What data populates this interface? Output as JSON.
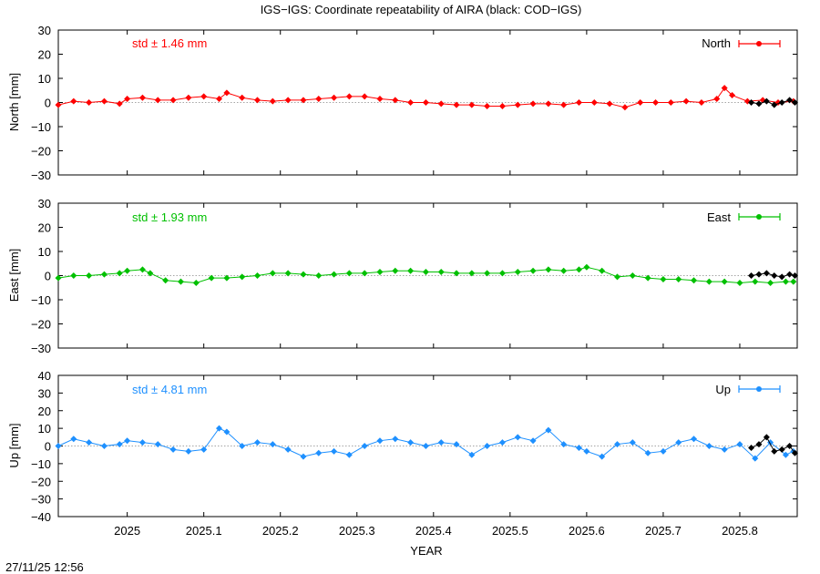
{
  "title": "IGS−IGS: Coordinate repeatability of AIRA (black: COD−IGS)",
  "timestamp": "27/11/25 12:56",
  "xlabel": "YEAR",
  "x_ticks": [
    "2025",
    "2025.1",
    "2025.2",
    "2025.3",
    "2025.4",
    "2025.5",
    "2025.6",
    "2025.7",
    "2025.8"
  ],
  "xlim": [
    2024.91,
    2025.875
  ],
  "panels": [
    {
      "key": "north",
      "ylabel": "North [mm]",
      "legend": "North",
      "std": "std ± 1.46 mm",
      "color": "#ff0000",
      "ylim": [
        -30,
        30
      ],
      "y_ticks": [
        "30",
        "20",
        "10",
        "0",
        "−10",
        "−20",
        "−30"
      ]
    },
    {
      "key": "east",
      "ylabel": "East [mm]",
      "legend": "East",
      "std": "std ± 1.93 mm",
      "color": "#00c000",
      "ylim": [
        -30,
        30
      ],
      "y_ticks": [
        "30",
        "20",
        "10",
        "0",
        "−10",
        "−20",
        "−30"
      ]
    },
    {
      "key": "up",
      "ylabel": "Up [mm]",
      "legend": "Up",
      "std": "std ± 4.81 mm",
      "color": "#1e90ff",
      "ylim": [
        -40,
        40
      ],
      "y_ticks": [
        "40",
        "30",
        "20",
        "10",
        "0",
        "−10",
        "−20",
        "−30",
        "−40"
      ]
    }
  ],
  "chart_data": {
    "type": "line",
    "title": "IGS−IGS: Coordinate repeatability of AIRA (black: COD−IGS)",
    "xlabel": "YEAR",
    "xlim": [
      2024.91,
      2025.875
    ],
    "grid": false,
    "legend_placement": "top-right",
    "marker": "diamond",
    "series": [
      {
        "name": "North",
        "color": "#ff0000",
        "ylim": [
          -30,
          30
        ],
        "x": [
          2024.91,
          2024.93,
          2024.95,
          2024.97,
          2024.99,
          2025.0,
          2025.02,
          2025.04,
          2025.06,
          2025.08,
          2025.1,
          2025.12,
          2025.13,
          2025.15,
          2025.17,
          2025.19,
          2025.21,
          2025.23,
          2025.25,
          2025.27,
          2025.29,
          2025.31,
          2025.33,
          2025.35,
          2025.37,
          2025.39,
          2025.41,
          2025.43,
          2025.45,
          2025.47,
          2025.49,
          2025.51,
          2025.53,
          2025.55,
          2025.57,
          2025.59,
          2025.61,
          2025.63,
          2025.65,
          2025.67,
          2025.69,
          2025.71,
          2025.73,
          2025.75,
          2025.77,
          2025.78,
          2025.79,
          2025.81,
          2025.83,
          2025.85,
          2025.87
        ],
        "y": [
          -1,
          0.5,
          0,
          0.5,
          -0.5,
          1.5,
          2,
          1,
          1,
          2,
          2.5,
          1.5,
          4,
          2,
          1,
          0.5,
          1,
          1,
          1.5,
          2,
          2.5,
          2.5,
          1.5,
          1,
          0,
          0,
          -0.5,
          -1,
          -1,
          -1.5,
          -1.5,
          -1,
          -0.5,
          -0.5,
          -1,
          0,
          0,
          -0.5,
          -2,
          0,
          0,
          0,
          0.5,
          0,
          1.5,
          6,
          3,
          0.5,
          1,
          0,
          0.5
        ]
      },
      {
        "name": "East",
        "color": "#00c000",
        "ylim": [
          -30,
          30
        ],
        "x": [
          2024.91,
          2024.93,
          2024.95,
          2024.97,
          2024.99,
          2025.0,
          2025.02,
          2025.03,
          2025.05,
          2025.07,
          2025.09,
          2025.11,
          2025.13,
          2025.15,
          2025.17,
          2025.19,
          2025.21,
          2025.23,
          2025.25,
          2025.27,
          2025.29,
          2025.31,
          2025.33,
          2025.35,
          2025.37,
          2025.39,
          2025.41,
          2025.43,
          2025.45,
          2025.47,
          2025.49,
          2025.51,
          2025.53,
          2025.55,
          2025.57,
          2025.59,
          2025.6,
          2025.62,
          2025.64,
          2025.66,
          2025.68,
          2025.7,
          2025.72,
          2025.74,
          2025.76,
          2025.78,
          2025.8,
          2025.82,
          2025.84,
          2025.86,
          2025.87
        ],
        "y": [
          -1,
          0,
          0,
          0.5,
          1,
          2,
          2.5,
          1,
          -2,
          -2.5,
          -3,
          -1,
          -1,
          -0.5,
          0,
          1,
          1,
          0.5,
          0,
          0.5,
          1,
          1,
          1.5,
          2,
          2,
          1.5,
          1.5,
          1,
          1,
          1,
          1,
          1.5,
          2,
          2.5,
          2,
          2.5,
          3.5,
          2,
          -0.5,
          0,
          -1,
          -1.5,
          -1.5,
          -2,
          -2.5,
          -2.5,
          -3,
          -2.5,
          -3,
          -2.5,
          -2.5
        ]
      },
      {
        "name": "Up",
        "color": "#1e90ff",
        "ylim": [
          -40,
          40
        ],
        "x": [
          2024.91,
          2024.93,
          2024.95,
          2024.97,
          2024.99,
          2025.0,
          2025.02,
          2025.04,
          2025.06,
          2025.08,
          2025.1,
          2025.12,
          2025.13,
          2025.15,
          2025.17,
          2025.19,
          2025.21,
          2025.23,
          2025.25,
          2025.27,
          2025.29,
          2025.31,
          2025.33,
          2025.35,
          2025.37,
          2025.39,
          2025.41,
          2025.43,
          2025.45,
          2025.47,
          2025.49,
          2025.51,
          2025.53,
          2025.55,
          2025.57,
          2025.59,
          2025.6,
          2025.62,
          2025.64,
          2025.66,
          2025.68,
          2025.7,
          2025.72,
          2025.74,
          2025.76,
          2025.78,
          2025.8,
          2025.82,
          2025.84,
          2025.86,
          2025.87
        ],
        "y": [
          0,
          4,
          2,
          0,
          1,
          3,
          2,
          1,
          -2,
          -3,
          -2,
          10,
          8,
          0,
          2,
          1,
          -2,
          -6,
          -4,
          -3,
          -5,
          0,
          3,
          4,
          2,
          0,
          2,
          1,
          -5,
          0,
          2,
          5,
          3,
          9,
          1,
          -1,
          -3,
          -6,
          1,
          2,
          -4,
          -3,
          2,
          4,
          0,
          -2,
          1,
          -7,
          2,
          -5,
          -3
        ]
      },
      {
        "name": "COD−IGS North",
        "color": "#000000",
        "ylim": [
          -30,
          30
        ],
        "x": [
          2025.815,
          2025.825,
          2025.835,
          2025.845,
          2025.855,
          2025.865,
          2025.872
        ],
        "y": [
          0,
          -0.5,
          0.5,
          -1,
          0,
          1,
          0
        ]
      },
      {
        "name": "COD−IGS East",
        "color": "#000000",
        "ylim": [
          -30,
          30
        ],
        "x": [
          2025.815,
          2025.825,
          2025.835,
          2025.845,
          2025.855,
          2025.865,
          2025.872
        ],
        "y": [
          0,
          0.5,
          1,
          0,
          -0.5,
          0.5,
          0
        ]
      },
      {
        "name": "COD−IGS Up",
        "color": "#000000",
        "ylim": [
          -40,
          40
        ],
        "x": [
          2025.815,
          2025.825,
          2025.835,
          2025.845,
          2025.855,
          2025.865,
          2025.872
        ],
        "y": [
          -1,
          1,
          5,
          -3,
          -2,
          0,
          -4
        ]
      }
    ]
  }
}
